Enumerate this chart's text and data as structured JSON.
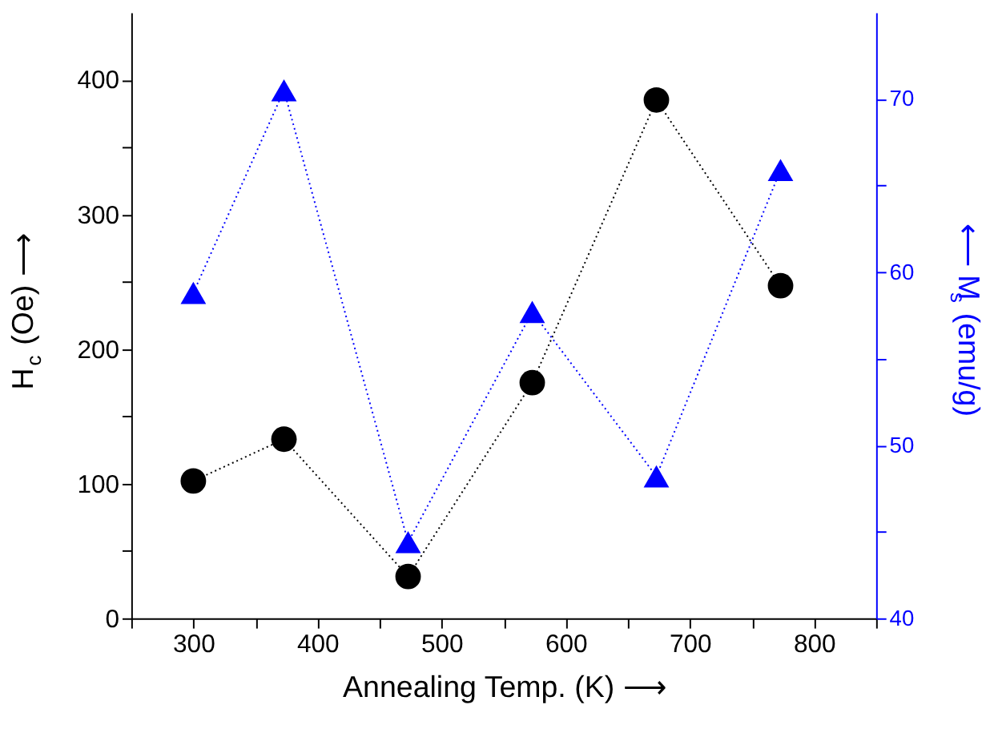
{
  "chart_data": {
    "type": "line",
    "xlabel": "Annealing Temp. (K) ⟶",
    "ylabel": "H$_{c}$ (Oe) ⟶",
    "y2label": "⟵ M$_{s}$ (emu/g)",
    "x": [
      300,
      373,
      473,
      573,
      673,
      773
    ],
    "xlim": [
      250,
      850
    ],
    "xticks": [
      {
        "value": 250,
        "label": null
      },
      300,
      {
        "value": 350,
        "label": null
      },
      400,
      {
        "value": 450,
        "label": null
      },
      500,
      {
        "value": 550,
        "label": null
      },
      600,
      {
        "value": 650,
        "label": null
      },
      700,
      {
        "value": 750,
        "label": null
      },
      800,
      {
        "value": 850,
        "label": null
      }
    ],
    "ylim": [
      0,
      450
    ],
    "yticks": [
      0,
      {
        "value": 50,
        "label": null
      },
      100,
      {
        "value": 150,
        "label": null
      },
      200,
      {
        "value": 250,
        "label": null
      },
      300,
      {
        "value": 350,
        "label": null
      },
      400
    ],
    "y2lim": [
      40,
      75
    ],
    "y2ticks": [
      40,
      {
        "value": 45,
        "label": null
      },
      50,
      {
        "value": 55,
        "label": null
      },
      60,
      {
        "value": 65,
        "label": null
      },
      70
    ],
    "grid": false,
    "legend": false,
    "line_style": "dotted",
    "series": [
      {
        "color": "#000000",
        "marker": "circle",
        "values": [
          102,
          133,
          31,
          175,
          385,
          247
        ]
      },
      {
        "color": "#0000ff",
        "marker": "triangle",
        "axis": "y2",
        "values": [
          58.8,
          70.5,
          44.4,
          57.7,
          48.2,
          65.9
        ]
      }
    ]
  }
}
